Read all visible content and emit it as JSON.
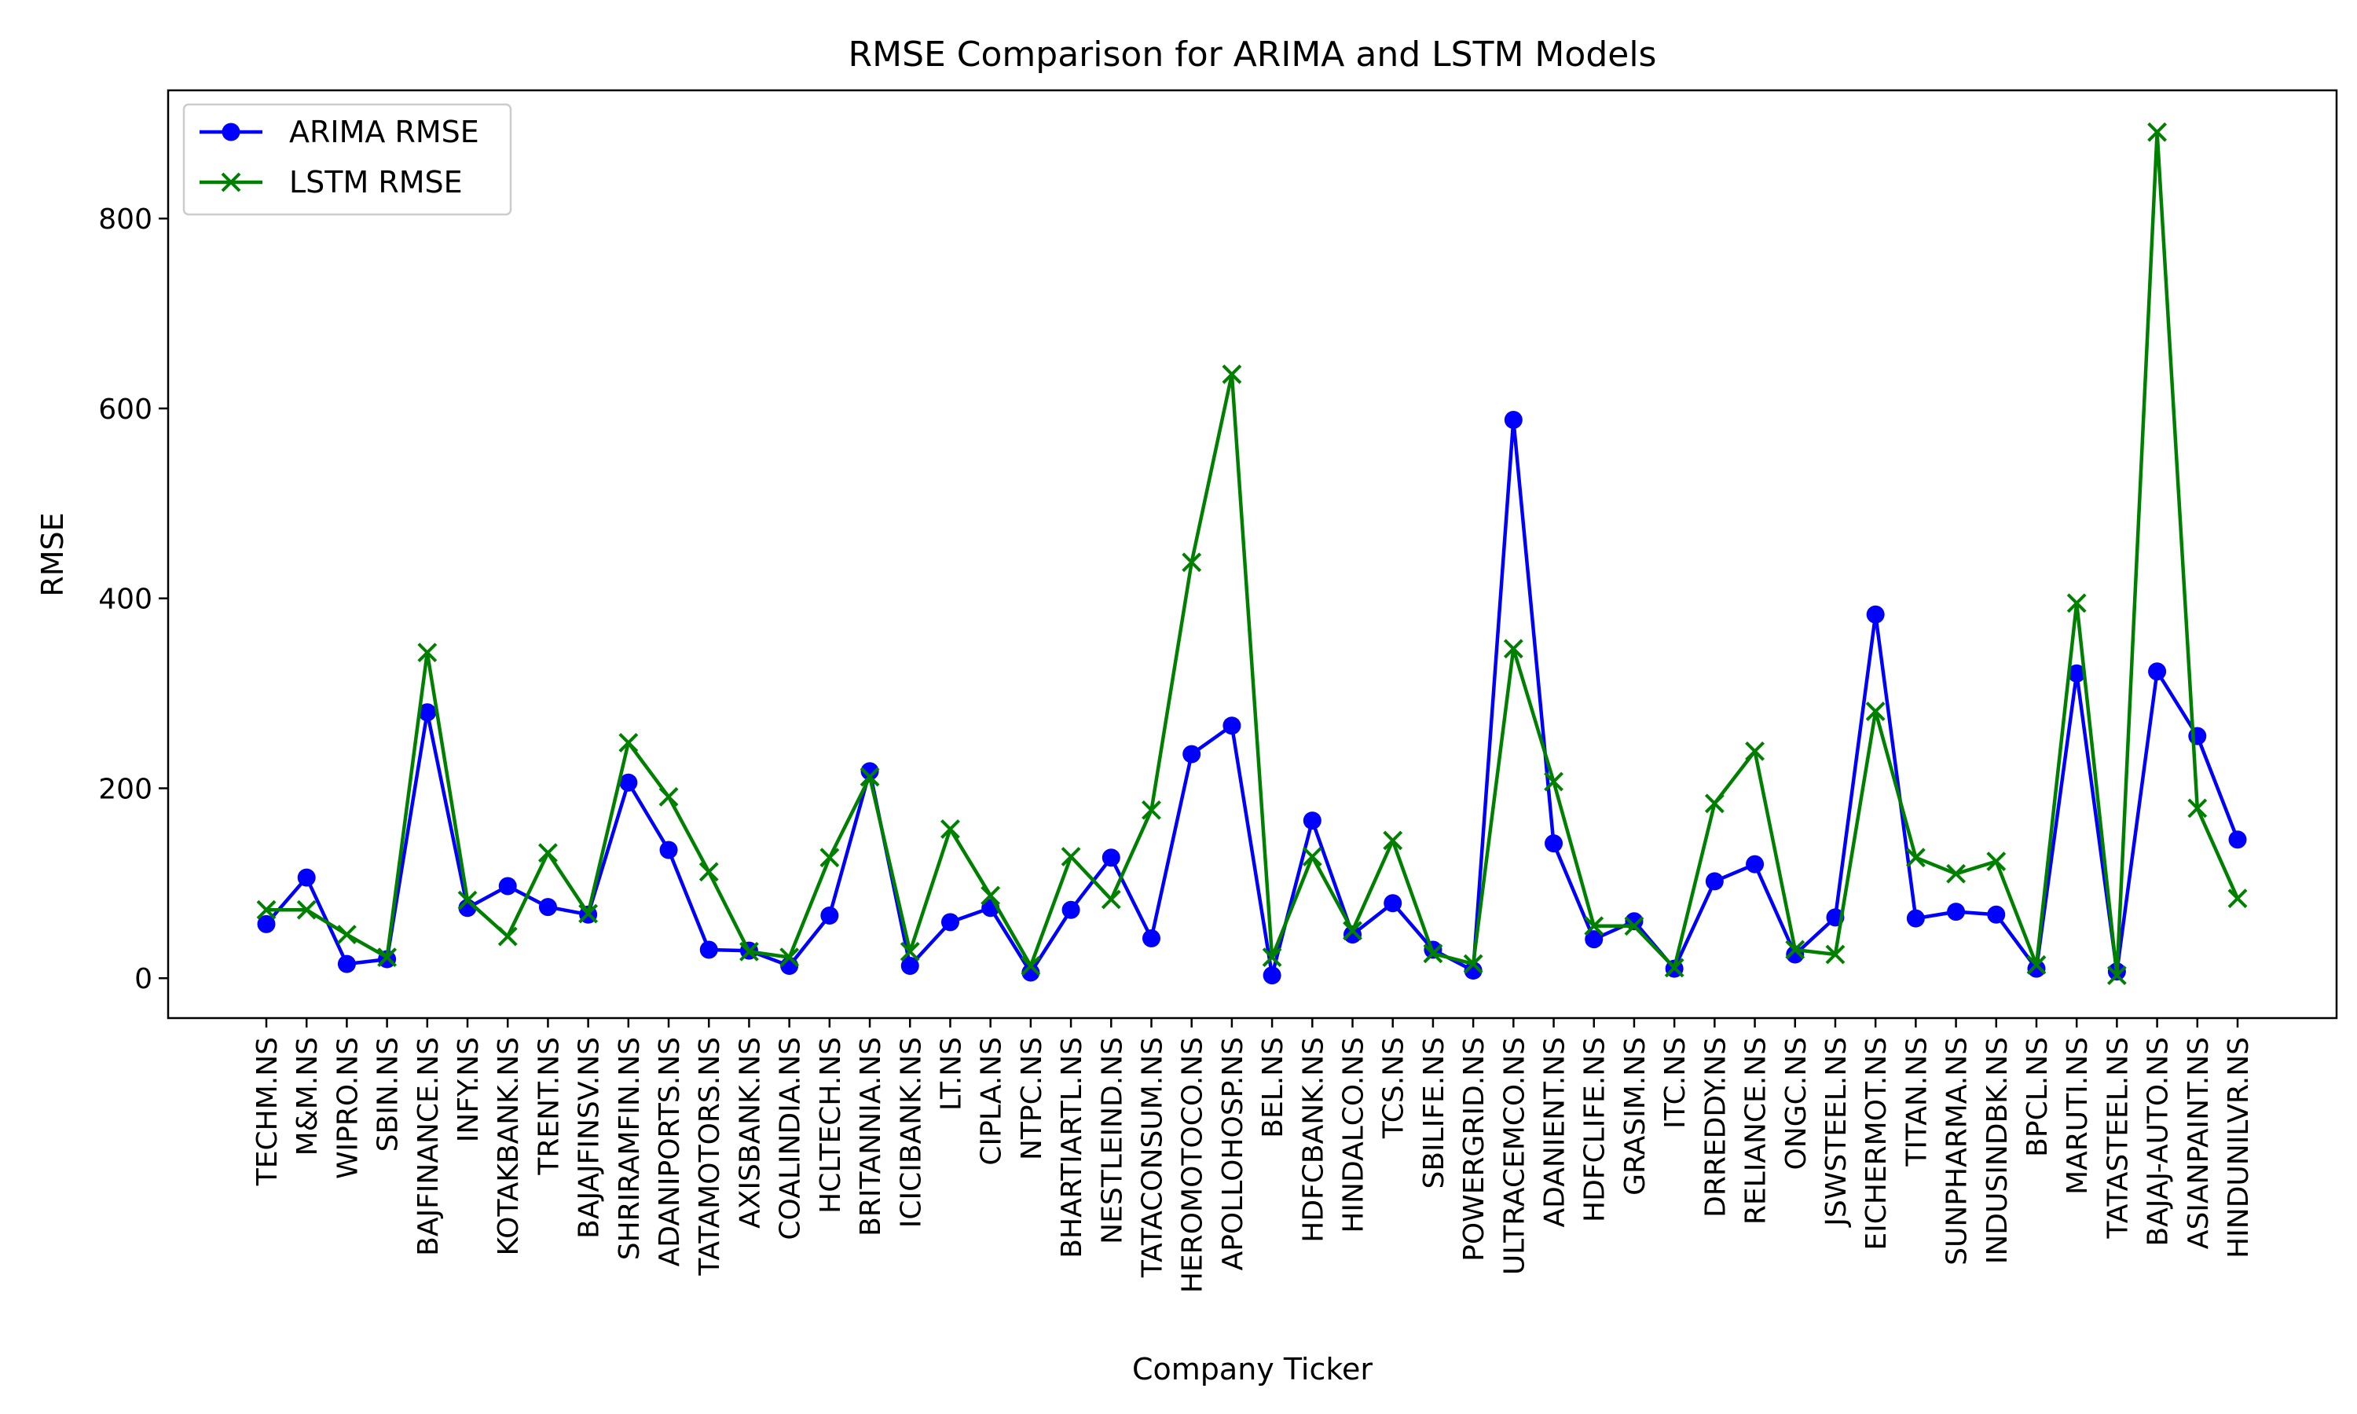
{
  "chart_data": {
    "type": "line",
    "title": "RMSE Comparison for ARIMA and LSTM Models",
    "xlabel": "Company Ticker",
    "ylabel": "RMSE",
    "ylim": [
      -42,
      935
    ],
    "yticks": [
      "0",
      "200",
      "400",
      "600",
      "800"
    ],
    "ytick_values": [
      0,
      200,
      400,
      600,
      800
    ],
    "grid": false,
    "legend_position": "upper-left",
    "categories": [
      "TECHM.NS",
      "M&M.NS",
      "WIPRO.NS",
      "SBIN.NS",
      "BAJFINANCE.NS",
      "INFY.NS",
      "KOTAKBANK.NS",
      "TRENT.NS",
      "BAJAJFINSV.NS",
      "SHRIRAMFIN.NS",
      "ADANIPORTS.NS",
      "TATAMOTORS.NS",
      "AXISBANK.NS",
      "COALINDIA.NS",
      "HCLTECH.NS",
      "BRITANNIA.NS",
      "ICICIBANK.NS",
      "LT.NS",
      "CIPLA.NS",
      "NTPC.NS",
      "BHARTIARTL.NS",
      "NESTLEIND.NS",
      "TATACONSUM.NS",
      "HEROMOTOCO.NS",
      "APOLLOHOSP.NS",
      "BEL.NS",
      "HDFCBANK.NS",
      "HINDALCO.NS",
      "TCS.NS",
      "SBILIFE.NS",
      "POWERGRID.NS",
      "ULTRACEMCO.NS",
      "ADANIENT.NS",
      "HDFCLIFE.NS",
      "GRASIM.NS",
      "ITC.NS",
      "DRREDDY.NS",
      "RELIANCE.NS",
      "ONGC.NS",
      "JSWSTEEL.NS",
      "EICHERMOT.NS",
      "TITAN.NS",
      "SUNPHARMA.NS",
      "INDUSINDBK.NS",
      "BPCL.NS",
      "MARUTI.NS",
      "TATASTEEL.NS",
      "BAJAJ-AUTO.NS",
      "ASIANPAINT.NS",
      "HINDUNILVR.NS"
    ],
    "series": [
      {
        "name": "ARIMA RMSE",
        "color": "#0000ff",
        "marker": "circle",
        "values": [
          57,
          106,
          15,
          20,
          280,
          74,
          97,
          75,
          67,
          206,
          135,
          30,
          29,
          13,
          66,
          218,
          13,
          59,
          74,
          6,
          72,
          127,
          42,
          236,
          266,
          3,
          166,
          46,
          79,
          30,
          8,
          588,
          142,
          41,
          60,
          10,
          102,
          120,
          25,
          64,
          383,
          63,
          70,
          67,
          10,
          321,
          7,
          323,
          255,
          146
        ]
      },
      {
        "name": "LSTM RMSE",
        "color": "#008000",
        "marker": "x",
        "values": [
          72,
          72,
          46,
          22,
          343,
          82,
          44,
          132,
          68,
          248,
          191,
          112,
          28,
          22,
          127,
          212,
          28,
          157,
          87,
          13,
          128,
          83,
          177,
          438,
          636,
          22,
          128,
          50,
          145,
          26,
          15,
          347,
          207,
          55,
          55,
          11,
          184,
          239,
          30,
          25,
          281,
          127,
          110,
          123,
          14,
          395,
          3,
          891,
          179,
          84
        ]
      }
    ]
  }
}
